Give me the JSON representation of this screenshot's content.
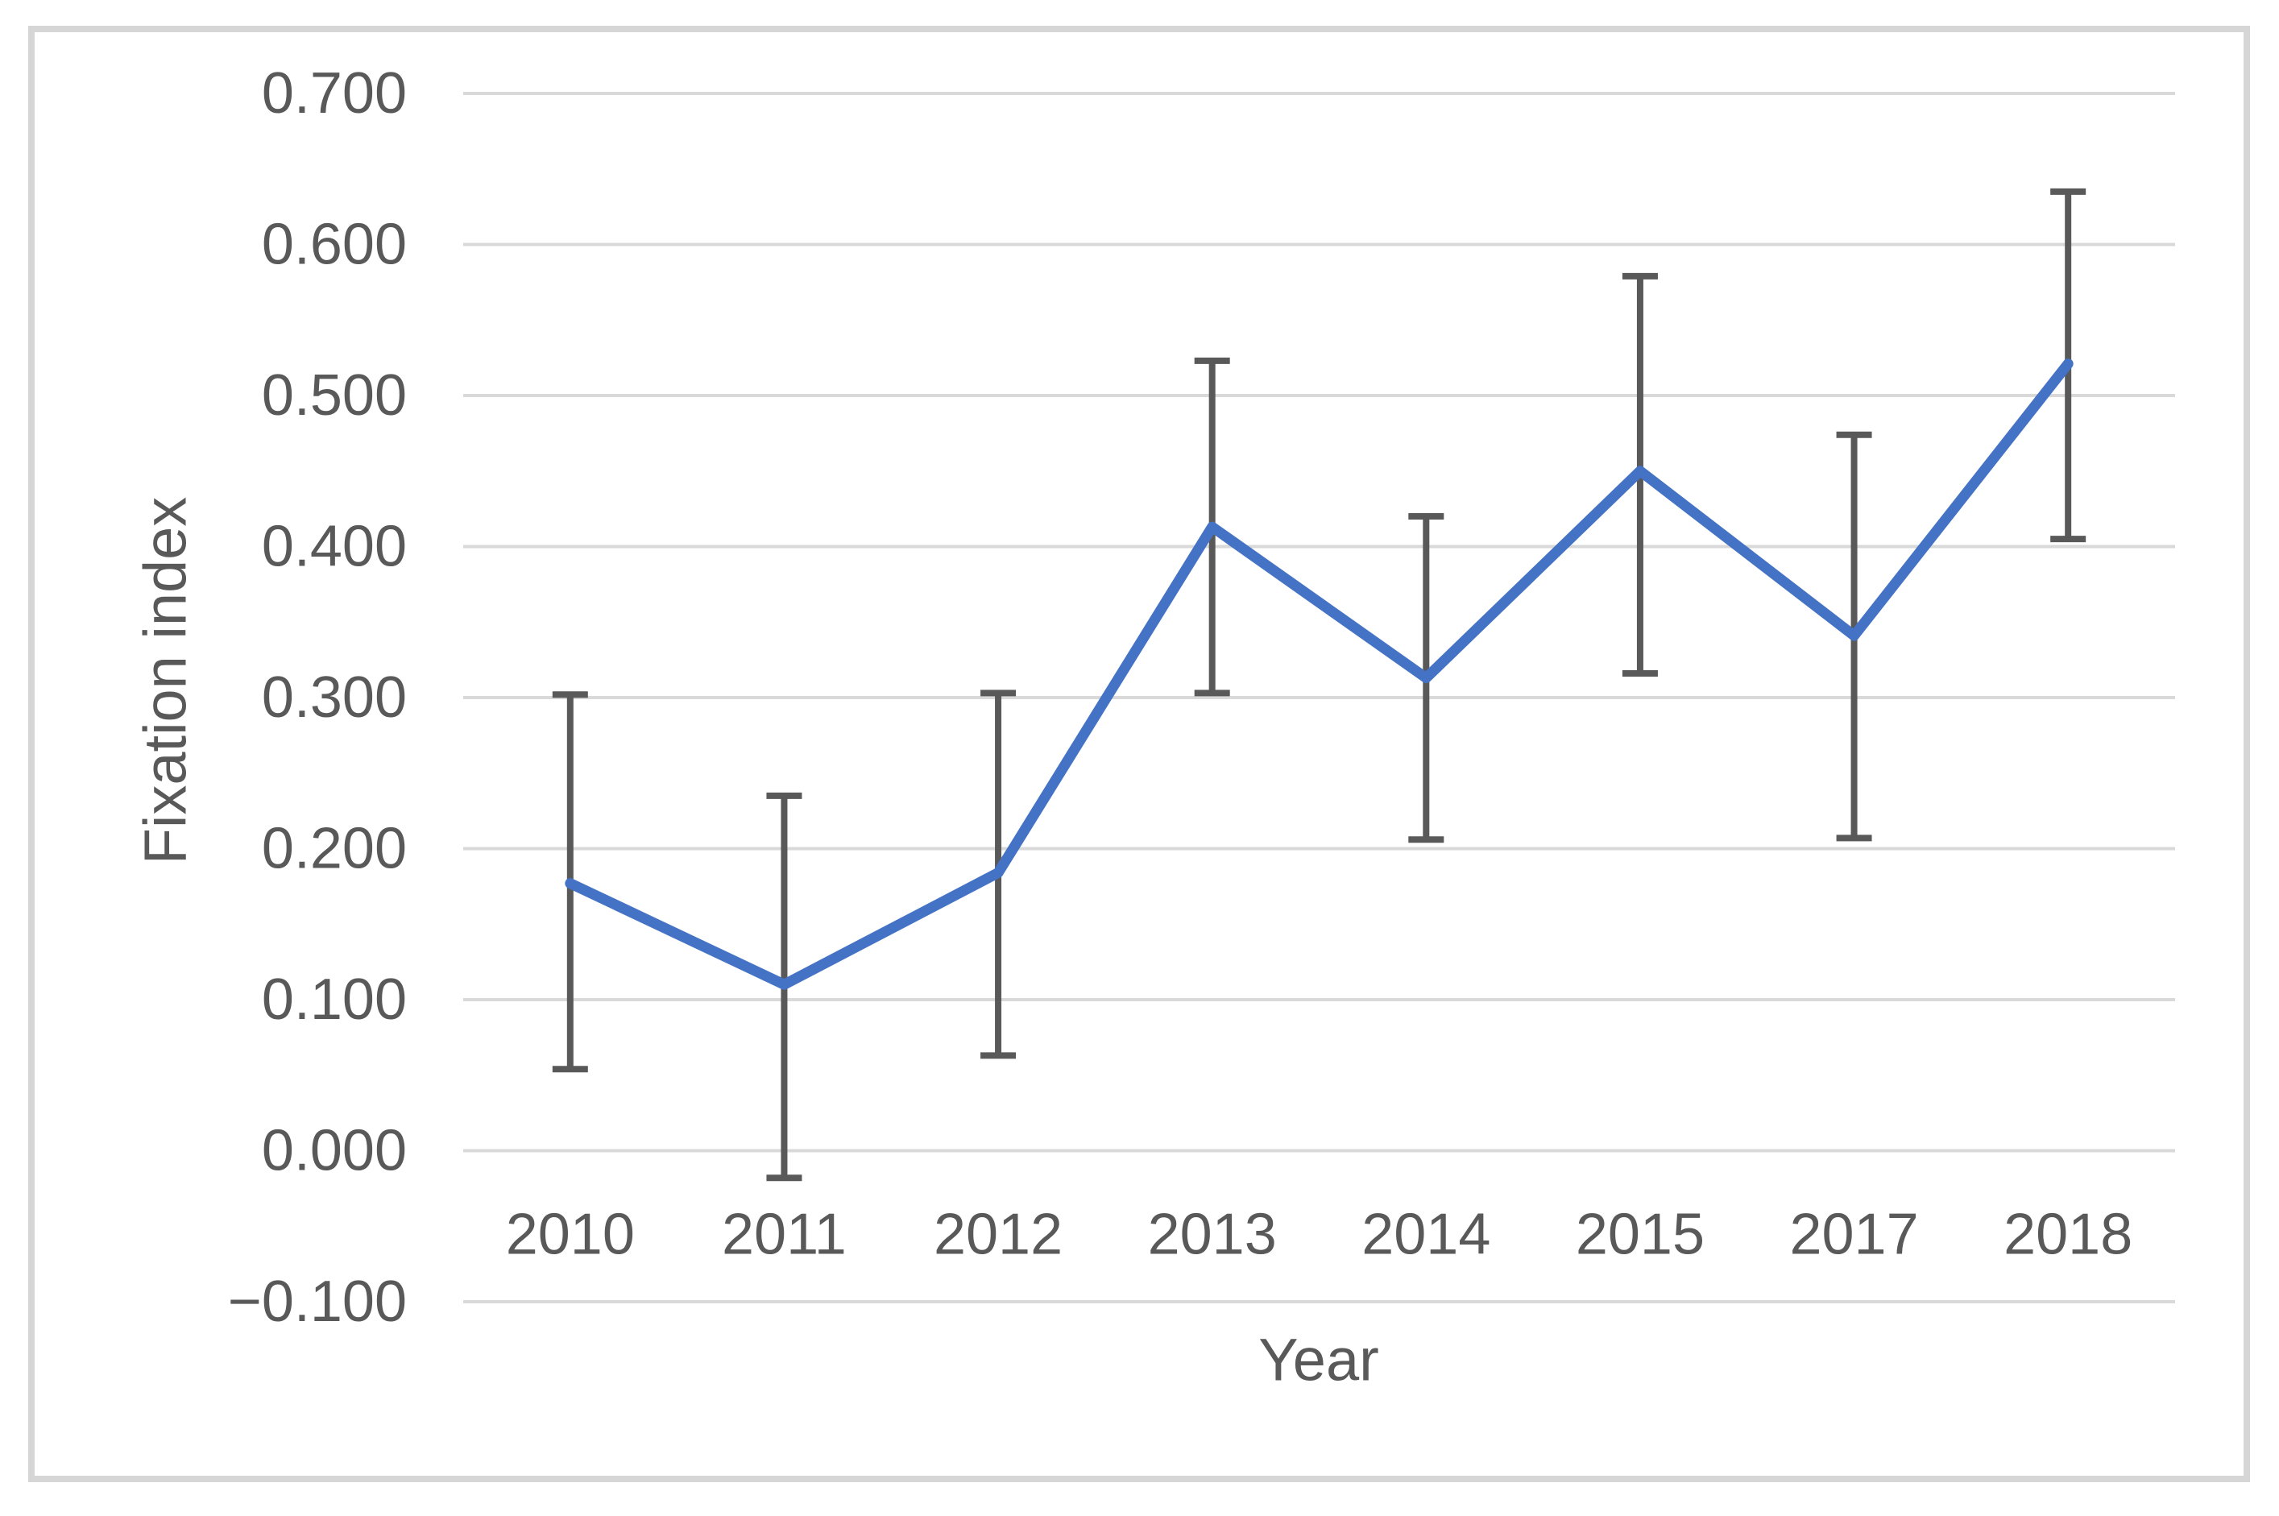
{
  "chart_data": {
    "type": "line",
    "title": "",
    "xlabel": "Year",
    "ylabel": "Fixation index",
    "categories": [
      "2010",
      "2011",
      "2012",
      "2013",
      "2014",
      "2015",
      "2017",
      "2018"
    ],
    "series": [
      {
        "name": "Fixation index",
        "values": [
          0.177,
          0.11,
          0.184,
          0.413,
          0.313,
          0.45,
          0.341,
          0.521
        ],
        "error_low": [
          0.054,
          -0.018,
          0.063,
          0.303,
          0.206,
          0.316,
          0.207,
          0.405
        ],
        "error_high": [
          0.302,
          0.235,
          0.303,
          0.523,
          0.42,
          0.579,
          0.474,
          0.635
        ]
      }
    ],
    "ylim": [
      -0.1,
      0.7
    ],
    "ytick_step": 0.1,
    "ytick_labels": [
      "0.700",
      "0.600",
      "0.500",
      "0.400",
      "0.300",
      "0.200",
      "0.100",
      "0.000",
      "−0.100"
    ],
    "ytick_values": [
      0.7,
      0.6,
      0.5,
      0.4,
      0.3,
      0.2,
      0.1,
      0.0,
      -0.1
    ],
    "grid": true,
    "legend": false,
    "markers": false
  },
  "colors": {
    "line": "#4472C4",
    "error_bar": "#595959",
    "gridline": "#D9D9D9",
    "text": "#595959",
    "frame_border": "#D6D6D6",
    "background": "#FFFFFF"
  }
}
